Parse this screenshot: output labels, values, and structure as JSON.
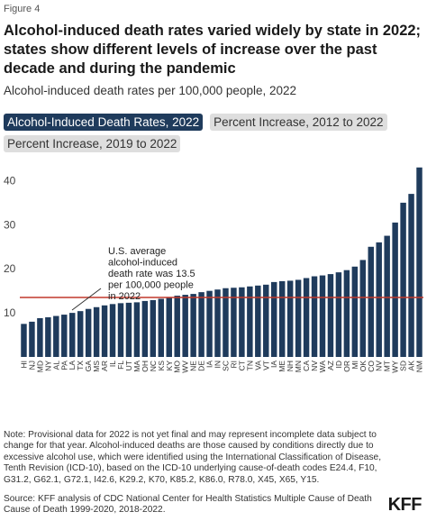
{
  "figure_label": "Figure 4",
  "title": "Alcohol-induced death rates varied widely by state in 2022; states show different levels of increase over the past decade and during the pandemic",
  "subtitle": "Alcohol-induced death rates per 100,000 people, 2022",
  "tabs": [
    {
      "label": "Alcohol-Induced Death Rates, 2022",
      "active": true
    },
    {
      "label": "Percent Increase, 2012 to 2022",
      "active": false
    },
    {
      "label": "Percent Increase, 2019 to 2022",
      "active": false
    }
  ],
  "note": "Note: Provisional data for 2022 is not yet final and may represent incomplete data subject to change for that year. Alcohol-induced deaths are those caused by conditions directly due to excessive alcohol use, which were identified using the International Classification of Disease, Tenth Revision (ICD-10), based on the ICD-10 underlying cause-of-death codes E24.4, F10, G31.2, G62.1, G72.1, I42.6, K29.2, K70, K85.2, K86.0, R78.0, X45, X65, Y15.",
  "source": "Source: KFF analysis of CDC National Center for Health Statistics Multiple Cause of Death Cause of Death 1999-2020, 2018-2022.",
  "logo_text": "KFF",
  "colors": {
    "bar": "#1f3b5c",
    "reference_line": "#c0392b",
    "active_tab": "#1f3b5c",
    "inactive_tab": "#dedede"
  },
  "chart_data": {
    "type": "bar",
    "categories": [
      "HI",
      "NJ",
      "MD",
      "NY",
      "AL",
      "PA",
      "LA",
      "TX",
      "GA",
      "MS",
      "AR",
      "IL",
      "FL",
      "UT",
      "MA",
      "OH",
      "NC",
      "KS",
      "KY",
      "MO",
      "WV",
      "NE",
      "DE",
      "IA",
      "IN",
      "SC",
      "RI",
      "CT",
      "TN",
      "VA",
      "VT",
      "IA",
      "ME",
      "NH",
      "MN",
      "CA",
      "NV",
      "WA",
      "AZ",
      "ID",
      "OR",
      "MI",
      "OK",
      "CO",
      "NV",
      "MT",
      "WY",
      "SD",
      "AK",
      "NM"
    ],
    "values": [
      7.5,
      8.0,
      8.8,
      9.0,
      9.3,
      9.6,
      10.0,
      10.4,
      10.9,
      11.3,
      11.7,
      12.0,
      12.2,
      12.3,
      12.4,
      12.7,
      12.9,
      13.2,
      13.5,
      13.9,
      14.1,
      14.3,
      14.7,
      15.0,
      15.3,
      15.6,
      15.7,
      15.8,
      16.0,
      16.2,
      16.4,
      17.0,
      17.2,
      17.3,
      17.5,
      17.9,
      18.3,
      18.5,
      18.8,
      19.2,
      19.7,
      20.5,
      22.0,
      25.0,
      26.0,
      27.5,
      30.5,
      35.0,
      37.0,
      43.0
    ],
    "ylim": [
      0,
      45
    ],
    "yticks": [
      10,
      20,
      30,
      40
    ],
    "grid": false,
    "reference_line": {
      "value": 13.5,
      "label": "U.S. average alcohol-induced death rate was 13.5 per 100,000 people in 2022"
    }
  }
}
